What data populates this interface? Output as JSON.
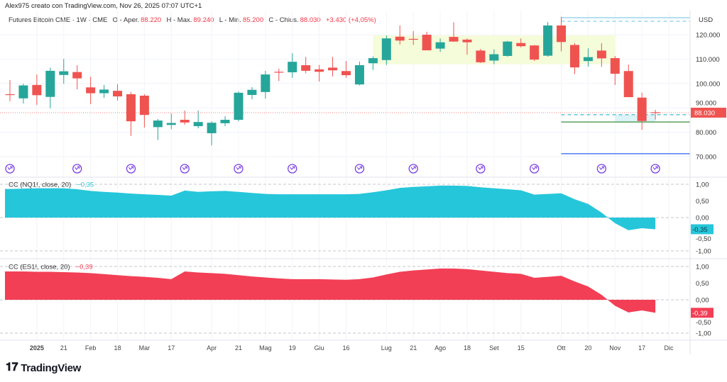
{
  "header": {
    "credit": "Alex975 creato con TradingView.com, Nov 26, 2025 07:07 UTC+1",
    "symbol": "Futures Bitcoin CME · 1W · CME",
    "open_label": "O - Aper.",
    "open": "88.220",
    "high_label": "H - Max.",
    "high": "89.240",
    "low_label": "L - Min.",
    "low": "85.200",
    "close_label": "C - Chius.",
    "close": "88.030",
    "change": "+3.430 (+4,05%)"
  },
  "colors": {
    "up": "#26a69a",
    "down": "#ef5350",
    "nq_fill": "#26c6da",
    "es_fill": "#f23f55",
    "event_icon": "#7b3fe4",
    "zone_fill": "#f3fbd2"
  },
  "price_axis": {
    "currency": "USD",
    "ticks": [
      {
        "value": 120000,
        "label": "120.000"
      },
      {
        "value": 110000,
        "label": "110.000"
      },
      {
        "value": 100000,
        "label": "100.000"
      },
      {
        "value": 90000,
        "label": "90.000"
      },
      {
        "value": 80000,
        "label": "80.000"
      },
      {
        "value": 70000,
        "label": "70.000"
      }
    ],
    "last_price": 88030,
    "last_price_label": "88.030"
  },
  "candles_fields": [
    "week",
    "open",
    "high",
    "low",
    "close"
  ],
  "candles": [
    [
      "2024-12-22",
      95600,
      101400,
      92700,
      95500
    ],
    [
      "2024-12-29",
      93900,
      99900,
      91800,
      99200
    ],
    [
      "2025-01-05",
      99400,
      103700,
      91200,
      95200
    ],
    [
      "2025-01-12",
      94500,
      106500,
      89800,
      105200
    ],
    [
      "2025-01-19",
      103500,
      110100,
      99900,
      105000
    ],
    [
      "2025-01-26",
      104700,
      107500,
      97600,
      102100
    ],
    [
      "2025-02-02",
      98400,
      102800,
      91500,
      96000
    ],
    [
      "2025-02-09",
      96000,
      99400,
      94100,
      97500
    ],
    [
      "2025-02-16",
      97000,
      99700,
      93000,
      94700
    ],
    [
      "2025-02-23",
      95600,
      96500,
      78500,
      84500
    ],
    [
      "2025-03-02",
      95000,
      95600,
      81900,
      87100
    ],
    [
      "2025-03-09",
      82100,
      85400,
      76800,
      84800
    ],
    [
      "2025-03-16",
      83000,
      87700,
      81300,
      83800
    ],
    [
      "2025-03-23",
      85100,
      88900,
      83100,
      84000
    ],
    [
      "2025-03-30",
      82500,
      88900,
      81600,
      84200
    ],
    [
      "2025-04-06",
      79600,
      84500,
      74600,
      83900
    ],
    [
      "2025-04-13",
      83700,
      86600,
      82500,
      85100
    ],
    [
      "2025-04-20",
      85100,
      96700,
      84500,
      96200
    ],
    [
      "2025-04-27",
      95300,
      98500,
      93500,
      97400
    ],
    [
      "2025-05-04",
      96500,
      105200,
      93800,
      103700
    ],
    [
      "2025-05-11",
      104800,
      106100,
      101000,
      104600
    ],
    [
      "2025-05-18",
      104600,
      112400,
      102300,
      108900
    ],
    [
      "2025-05-25",
      107500,
      110900,
      104200,
      105200
    ],
    [
      "2025-06-01",
      105800,
      107600,
      100800,
      104800
    ],
    [
      "2025-06-08",
      106500,
      110900,
      102900,
      105400
    ],
    [
      "2025-06-15",
      105100,
      109200,
      102300,
      103400
    ],
    [
      "2025-06-22",
      99600,
      109000,
      99200,
      107500
    ],
    [
      "2025-06-29",
      108300,
      111100,
      105500,
      110400
    ],
    [
      "2025-07-06",
      109600,
      119700,
      107600,
      118500
    ],
    [
      "2025-07-13",
      119200,
      123800,
      116000,
      117600
    ],
    [
      "2025-07-20",
      118300,
      121500,
      115800,
      118100
    ],
    [
      "2025-07-27",
      120000,
      121200,
      113600,
      113600
    ],
    [
      "2025-08-03",
      114300,
      118500,
      112900,
      116900
    ],
    [
      "2025-08-10",
      119100,
      125100,
      117100,
      117200
    ],
    [
      "2025-08-17",
      118000,
      118500,
      111800,
      116900
    ],
    [
      "2025-08-24",
      113500,
      114200,
      108400,
      108700
    ],
    [
      "2025-08-31",
      109400,
      114000,
      107900,
      112000
    ],
    [
      "2025-09-07",
      111300,
      117500,
      111000,
      117200
    ],
    [
      "2025-09-14",
      116600,
      118500,
      114800,
      115300
    ],
    [
      "2025-09-21",
      115600,
      115800,
      109200,
      109800
    ],
    [
      "2025-09-28",
      111400,
      125200,
      111000,
      123800
    ],
    [
      "2025-10-05",
      123800,
      127300,
      113200,
      117000
    ],
    [
      "2025-10-12",
      115800,
      116500,
      103900,
      106600
    ],
    [
      "2025-10-19",
      109200,
      114400,
      106900,
      110800
    ],
    [
      "2025-10-26",
      113500,
      116500,
      106800,
      110300
    ],
    [
      "2025-11-02",
      110400,
      111300,
      99400,
      104000
    ],
    [
      "2025-11-09",
      105100,
      107800,
      94400,
      94400
    ],
    [
      "2025-11-16",
      94200,
      96200,
      81000,
      84600
    ],
    [
      "2025-11-23",
      88220,
      89240,
      85200,
      88030
    ]
  ],
  "drawings": [
    {
      "type": "hline",
      "style": "solid",
      "color": "#8fd3e8",
      "price": 127000,
      "from": "2025-10-05"
    },
    {
      "type": "hline",
      "style": "dashed",
      "color": "#8fd3e8",
      "price": 125500,
      "from": "2025-10-05"
    },
    {
      "type": "hline",
      "style": "dashed",
      "color": "#4fc3d6",
      "price": 87200,
      "from": "2025-10-05"
    },
    {
      "type": "hline",
      "style": "solid",
      "color": "#388e3c",
      "price": 84200,
      "from": "2025-10-05"
    },
    {
      "type": "hline",
      "style": "solid",
      "color": "#2962ff",
      "price": 71200,
      "from": "2025-10-05"
    },
    {
      "type": "rect",
      "color": "#f3fbd2",
      "from": "2025-06-29",
      "to": "2025-11-02",
      "top": 119700,
      "bottom": 107900
    },
    {
      "type": "rect",
      "color": "#d6f1f6",
      "from": "2025-11-02",
      "to": "2025-11-23",
      "top": 87200,
      "bottom": 84200
    }
  ],
  "events": [
    "2024-12-22",
    "2025-01-26",
    "2025-02-23",
    "2025-03-23",
    "2025-04-20",
    "2025-05-18",
    "2025-06-22",
    "2025-07-20",
    "2025-08-24",
    "2025-09-21",
    "2025-10-26",
    "2025-11-23"
  ],
  "time_axis": [
    {
      "label": "2025",
      "date": "2025-01-05",
      "bold": true
    },
    {
      "label": "21",
      "date": "2025-01-19"
    },
    {
      "label": "Feb",
      "date": "2025-02-02"
    },
    {
      "label": "18",
      "date": "2025-02-16"
    },
    {
      "label": "Mar",
      "date": "2025-03-02"
    },
    {
      "label": "17",
      "date": "2025-03-16"
    },
    {
      "label": "Apr",
      "date": "2025-04-06"
    },
    {
      "label": "21",
      "date": "2025-04-20"
    },
    {
      "label": "Mag",
      "date": "2025-05-04"
    },
    {
      "label": "19",
      "date": "2025-05-18"
    },
    {
      "label": "Giu",
      "date": "2025-06-01"
    },
    {
      "label": "16",
      "date": "2025-06-15"
    },
    {
      "label": "Lug",
      "date": "2025-07-06"
    },
    {
      "label": "21",
      "date": "2025-07-20"
    },
    {
      "label": "Ago",
      "date": "2025-08-03"
    },
    {
      "label": "18",
      "date": "2025-08-17"
    },
    {
      "label": "Set",
      "date": "2025-08-31"
    },
    {
      "label": "15",
      "date": "2025-09-14"
    },
    {
      "label": "Ott",
      "date": "2025-10-05"
    },
    {
      "label": "20",
      "date": "2025-10-19"
    },
    {
      "label": "Nov",
      "date": "2025-11-02"
    },
    {
      "label": "17",
      "date": "2025-11-16"
    },
    {
      "label": "Dic",
      "date": "2025-11-30"
    }
  ],
  "indicators": [
    {
      "title": "CC (NQ1!, close, 20)",
      "value_label": "−0,35",
      "badge": "-0,35",
      "color": "#26c6da",
      "ticks": [
        {
          "value": 1,
          "label": "1,00"
        },
        {
          "value": 0.5,
          "label": "0,50"
        },
        {
          "value": 0,
          "label": "0,00"
        },
        {
          "value": -0.5,
          "label": "-0,50"
        },
        {
          "value": -1,
          "label": "-1,00"
        }
      ],
      "values": [
        0.86,
        0.87,
        0.88,
        0.88,
        0.88,
        0.85,
        0.8,
        0.77,
        0.75,
        0.72,
        0.7,
        0.68,
        0.66,
        0.81,
        0.77,
        0.79,
        0.8,
        0.77,
        0.74,
        0.71,
        0.7,
        0.7,
        0.7,
        0.7,
        0.7,
        0.7,
        0.71,
        0.76,
        0.82,
        0.89,
        0.92,
        0.94,
        0.96,
        0.96,
        0.95,
        0.91,
        0.88,
        0.85,
        0.82,
        0.69,
        0.71,
        0.73,
        0.55,
        0.41,
        0.15,
        -0.17,
        -0.38,
        -0.32,
        -0.35
      ]
    },
    {
      "title": "CC (ES1!, close, 20)",
      "value_label": "−0,39",
      "badge": "-0,39",
      "color": "#f23f55",
      "ticks": [
        {
          "value": 1,
          "label": "1,00"
        },
        {
          "value": 0.5,
          "label": "0,50"
        },
        {
          "value": 0,
          "label": "0,00"
        },
        {
          "value": -0.5,
          "label": "-0,50"
        },
        {
          "value": -1,
          "label": "-1,00"
        }
      ],
      "values": [
        0.85,
        0.85,
        0.84,
        0.84,
        0.83,
        0.82,
        0.8,
        0.77,
        0.74,
        0.71,
        0.69,
        0.66,
        0.62,
        0.85,
        0.82,
        0.8,
        0.78,
        0.74,
        0.7,
        0.67,
        0.64,
        0.62,
        0.62,
        0.62,
        0.61,
        0.6,
        0.62,
        0.67,
        0.76,
        0.84,
        0.88,
        0.91,
        0.94,
        0.94,
        0.92,
        0.88,
        0.84,
        0.8,
        0.78,
        0.66,
        0.69,
        0.72,
        0.55,
        0.4,
        0.15,
        -0.18,
        -0.38,
        -0.32,
        -0.39
      ]
    }
  ],
  "footer": {
    "logo_text": "TradingView"
  }
}
